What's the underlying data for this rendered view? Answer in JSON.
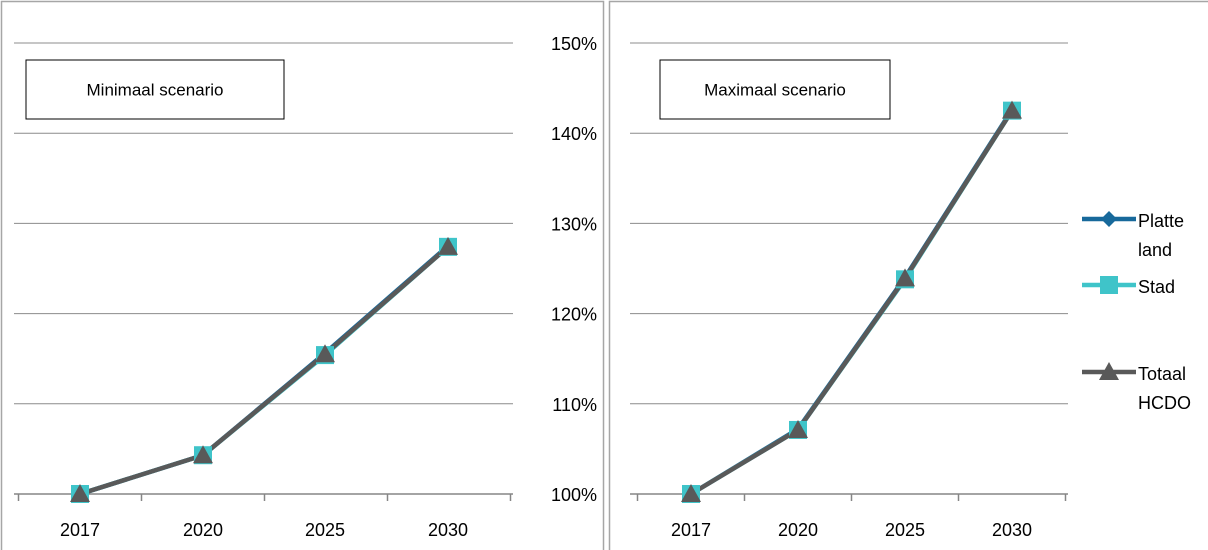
{
  "caption_fragments": [],
  "y_ticks": [
    "100%",
    "110%",
    "120%",
    "130%",
    "140%",
    "150%"
  ],
  "chart_data": [
    {
      "type": "line",
      "annotation": "Minimaal scenario",
      "categories": [
        "2017",
        "2020",
        "2025",
        "2030"
      ],
      "ylim": [
        100,
        150
      ],
      "y_unit": "%",
      "grid": true,
      "series": [
        {
          "name": "Platte land",
          "color": "#17699b",
          "marker": "diamond",
          "values": [
            100,
            104.3,
            115.6,
            127.5
          ]
        },
        {
          "name": "Stad",
          "color": "#3fc4c9",
          "marker": "square",
          "values": [
            100,
            104.3,
            115.4,
            127.4
          ]
        },
        {
          "name": "Totaal HCDO",
          "color": "#595959",
          "marker": "triangle",
          "values": [
            100,
            104.3,
            115.5,
            127.4
          ]
        }
      ]
    },
    {
      "type": "line",
      "annotation": "Maximaal scenario",
      "categories": [
        "2017",
        "2020",
        "2025",
        "2030"
      ],
      "ylim": [
        100,
        150
      ],
      "y_unit": "%",
      "grid": true,
      "series": [
        {
          "name": "Platte land",
          "color": "#17699b",
          "marker": "diamond",
          "values": [
            100,
            107.2,
            124.0,
            142.6
          ]
        },
        {
          "name": "Stad",
          "color": "#3fc4c9",
          "marker": "square",
          "values": [
            100,
            107.1,
            123.8,
            142.5
          ]
        },
        {
          "name": "Totaal HCDO",
          "color": "#595959",
          "marker": "triangle",
          "values": [
            100,
            107.1,
            123.9,
            142.5
          ]
        }
      ]
    }
  ],
  "legend": {
    "placement": "right",
    "items": [
      {
        "lines": [
          "Platte",
          "land"
        ],
        "color": "#17699b",
        "marker": "diamond"
      },
      {
        "lines": [
          "Stad"
        ],
        "color": "#3fc4c9",
        "marker": "square"
      },
      {
        "lines": [
          "Totaal",
          "HCDO"
        ],
        "color": "#595959",
        "marker": "triangle"
      }
    ]
  }
}
